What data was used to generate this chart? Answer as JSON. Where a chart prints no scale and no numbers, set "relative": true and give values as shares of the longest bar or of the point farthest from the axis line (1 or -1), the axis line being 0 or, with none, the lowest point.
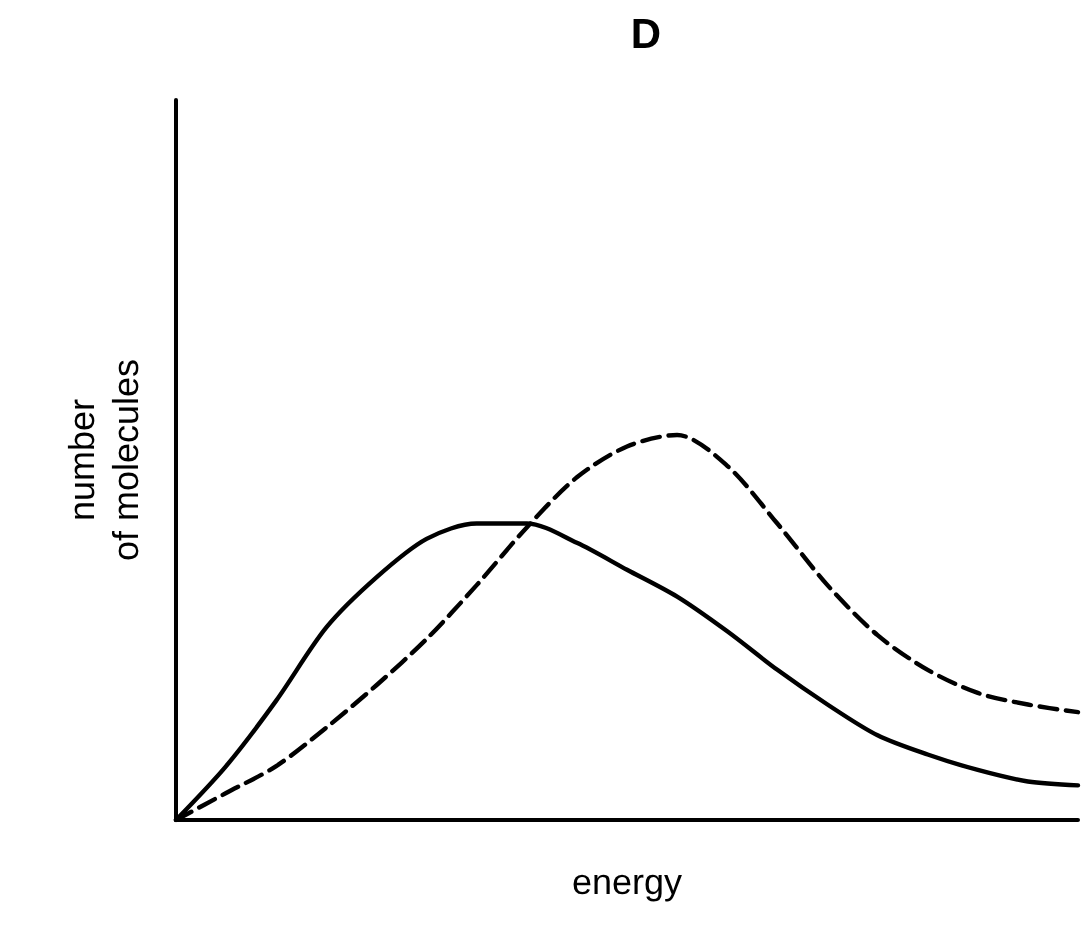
{
  "chart_data": {
    "type": "line",
    "title": "D",
    "xlabel": "energy",
    "ylabel": "number\nof molecules",
    "relative": true,
    "marker": "none",
    "categories": [
      null,
      null,
      null,
      null,
      null,
      null,
      null,
      null,
      null,
      null,
      null,
      null,
      null,
      null,
      null,
      null,
      null,
      null,
      null
    ],
    "series": [
      {
        "color": "#000000",
        "line_style": "solid",
        "values": [
          0,
          0.14,
          0.31,
          0.5,
          0.63,
          0.73,
          0.77,
          0.77,
          0.72,
          0.65,
          0.58,
          0.49,
          0.39,
          0.3,
          0.22,
          0.17,
          0.13,
          0.1,
          0.09
        ]
      },
      {
        "color": "#000000",
        "line_style": "dashed",
        "values": [
          0,
          0.07,
          0.14,
          0.24,
          0.35,
          0.47,
          0.61,
          0.76,
          0.89,
          0.97,
          1,
          0.92,
          0.77,
          0.61,
          0.48,
          0.39,
          0.33,
          0.3,
          0.28
        ]
      }
    ]
  }
}
